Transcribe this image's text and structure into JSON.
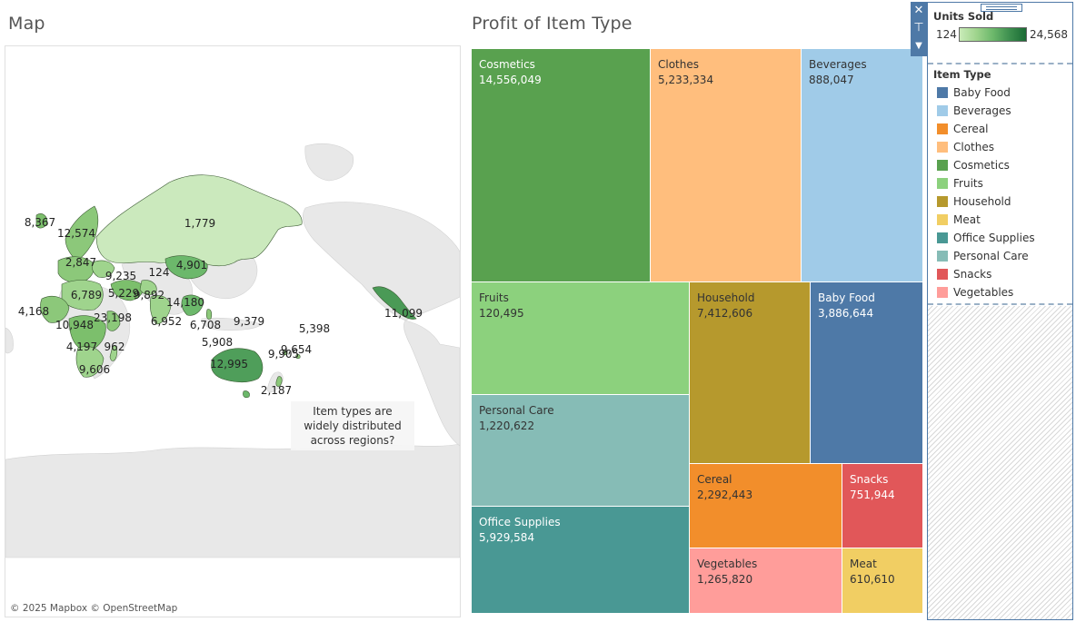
{
  "map": {
    "title": "Map",
    "annotation": "Item types are widely distributed across regions?",
    "attribution": "© 2025 Mapbox © OpenStreetMap",
    "labels": [
      "8,367",
      "12,574",
      "1,779",
      "2,847",
      "9,235",
      "124",
      "4,901",
      "6,789",
      "5,229",
      "9,892",
      "14,180",
      "4,168",
      "10,948",
      "23,198",
      "6,952",
      "6,708",
      "9,379",
      "5,398",
      "11,099",
      "4,197",
      "962",
      "5,908",
      "9,654",
      "9,905",
      "9,606",
      "12,995",
      "2,187"
    ]
  },
  "treemap": {
    "title": "Profit of Item Type",
    "tiles": [
      {
        "name": "Cosmetics",
        "value": "14,556,049",
        "color": "#59a14f",
        "text": "#ffffff"
      },
      {
        "name": "Clothes",
        "value": "5,233,334",
        "color": "#ffbe7d",
        "text": "#333333"
      },
      {
        "name": "Beverages",
        "value": "888,047",
        "color": "#a0cbe8",
        "text": "#333333"
      },
      {
        "name": "Fruits",
        "value": "120,495",
        "color": "#8cd17d",
        "text": "#333333"
      },
      {
        "name": "Household",
        "value": "7,412,606",
        "color": "#b6992d",
        "text": "#333333"
      },
      {
        "name": "Baby Food",
        "value": "3,886,644",
        "color": "#4e79a7",
        "text": "#ffffff"
      },
      {
        "name": "Personal Care",
        "value": "1,220,622",
        "color": "#86bcb6",
        "text": "#333333"
      },
      {
        "name": "Cereal",
        "value": "2,292,443",
        "color": "#f28e2b",
        "text": "#333333"
      },
      {
        "name": "Snacks",
        "value": "751,944",
        "color": "#e15759",
        "text": "#ffffff"
      },
      {
        "name": "Office Supplies",
        "value": "5,929,584",
        "color": "#499894",
        "text": "#ffffff"
      },
      {
        "name": "Vegetables",
        "value": "1,265,820",
        "color": "#ff9d9a",
        "text": "#333333"
      },
      {
        "name": "Meat",
        "value": "610,610",
        "color": "#f1ce63",
        "text": "#333333"
      }
    ]
  },
  "legend": {
    "units_title": "Units Sold",
    "units_min": "124",
    "units_max": "24,568",
    "item_title": "Item Type",
    "items": [
      {
        "label": "Baby Food",
        "color": "#4e79a7"
      },
      {
        "label": "Beverages",
        "color": "#a0cbe8"
      },
      {
        "label": "Cereal",
        "color": "#f28e2b"
      },
      {
        "label": "Clothes",
        "color": "#ffbe7d"
      },
      {
        "label": "Cosmetics",
        "color": "#59a14f"
      },
      {
        "label": "Fruits",
        "color": "#8cd17d"
      },
      {
        "label": "Household",
        "color": "#b6992d"
      },
      {
        "label": "Meat",
        "color": "#f1ce63"
      },
      {
        "label": "Office Supplies",
        "color": "#499894"
      },
      {
        "label": "Personal Care",
        "color": "#86bcb6"
      },
      {
        "label": "Snacks",
        "color": "#e15759"
      },
      {
        "label": "Vegetables",
        "color": "#ff9d9a"
      }
    ],
    "toolbar_icons": [
      "close-icon",
      "pin-icon",
      "dropdown-icon"
    ]
  }
}
